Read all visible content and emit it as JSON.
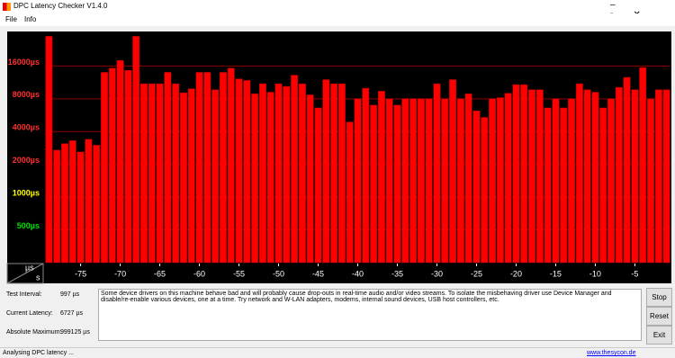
{
  "window": {
    "title": "DPC Latency Checker V1.4.0"
  },
  "menu": [
    "File",
    "Info"
  ],
  "chart_data": {
    "type": "bar",
    "y_unit": "µs",
    "x_unit": "s",
    "x": [
      -79,
      -78,
      -77,
      -76,
      -75,
      -74,
      -73,
      -72,
      -71,
      -70,
      -69,
      -68,
      -67,
      -66,
      -65,
      -64,
      -63,
      -62,
      -61,
      -60,
      -59,
      -58,
      -57,
      -56,
      -55,
      -54,
      -53,
      -52,
      -51,
      -50,
      -49,
      -48,
      -47,
      -46,
      -45,
      -44,
      -43,
      -42,
      -41,
      -40,
      -39,
      -38,
      -37,
      -36,
      -35,
      -34,
      -33,
      -32,
      -31,
      -30,
      -29,
      -28,
      -27,
      -26,
      -25,
      -24,
      -23,
      -22,
      -21,
      -20,
      -19,
      -18,
      -17,
      -16,
      -15,
      -14,
      -13,
      -12,
      -11,
      -10,
      -9,
      -8,
      -7,
      -6,
      -5,
      -4,
      -3,
      -2,
      -1
    ],
    "values": [
      30000,
      2700,
      3100,
      3300,
      2600,
      3400,
      3000,
      14000,
      15300,
      18000,
      14600,
      30000,
      11000,
      11000,
      11000,
      14000,
      11000,
      9100,
      9900,
      14000,
      14000,
      9700,
      14000,
      15300,
      12200,
      11800,
      8900,
      11000,
      9200,
      11000,
      10400,
      13200,
      11000,
      8700,
      6600,
      12000,
      11000,
      11000,
      4900,
      8000,
      10000,
      7000,
      9400,
      8000,
      7000,
      8000,
      8000,
      8000,
      8000,
      11000,
      8000,
      12000,
      8000,
      8900,
      6200,
      5400,
      8000,
      8200,
      9000,
      10800,
      10800,
      9700,
      9700,
      6600,
      8000,
      6600,
      8000,
      11000,
      9700,
      9200,
      6600,
      8000,
      10200,
      12600,
      9700,
      15500,
      8000,
      9700,
      9700
    ],
    "color": "#ff0000",
    "xlim": [
      -79.5,
      -0.5
    ],
    "xticks": [
      -75,
      -70,
      -65,
      -60,
      -55,
      -50,
      -45,
      -40,
      -35,
      -30,
      -25,
      -20,
      -15,
      -10,
      -5
    ],
    "ylim": [
      250,
      32000
    ],
    "log_scale": true,
    "grid": true,
    "yticks": [
      {
        "value": 500,
        "label": "500µs"
      },
      {
        "value": 1000,
        "label": "1000µs"
      },
      {
        "value": 2000,
        "label": "2000µs"
      },
      {
        "value": 4000,
        "label": "4000µs"
      },
      {
        "value": 8000,
        "label": "8000µs"
      },
      {
        "value": 16000,
        "label": "16000µs"
      }
    ],
    "ytick_colors": [
      "#00e000",
      "#ffff00",
      "#ff3030",
      "#ff3030",
      "#ff3030",
      "#ff3030"
    ]
  },
  "info": {
    "fields": [
      {
        "label": "Test Interval:",
        "value": "997 µs"
      },
      {
        "label": "Current Latency:",
        "value": "6727 µs"
      },
      {
        "label": "Absolute Maximum:",
        "value": "999125 µs"
      }
    ],
    "message": "Some device drivers on this machine behave bad and will probably cause drop-outs in real-time audio and/or video streams. To isolate the misbehaving driver use Device Manager and disable/re-enable various devices, one at a time. Try network and W-LAN adapters, modems, internal sound devices, USB host controllers, etc.",
    "buttons": [
      "Stop",
      "Reset",
      "Exit"
    ]
  },
  "status": {
    "text": "Analysing DPC latency ...",
    "link": "www.thesycon.de"
  }
}
